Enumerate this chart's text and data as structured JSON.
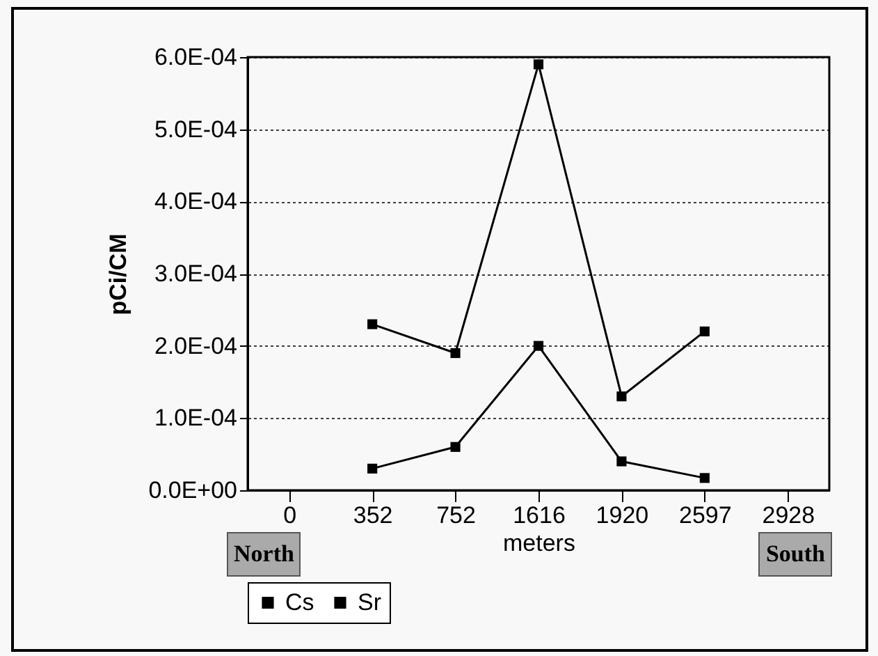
{
  "chart_data": {
    "type": "line",
    "xlabel": "meters",
    "ylabel": "pCi/CM",
    "categories": [
      "0",
      "352",
      "752",
      "1616",
      "1920",
      "2597",
      "2928"
    ],
    "series": [
      {
        "name": "Cs",
        "color": "#000000",
        "values": [
          null,
          0.00023,
          0.00019,
          0.00059,
          0.00013,
          0.00022,
          null
        ]
      },
      {
        "name": "Sr",
        "color": "#000000",
        "values": [
          null,
          3e-05,
          6e-05,
          0.0002,
          4e-05,
          1.7e-05,
          null
        ]
      }
    ],
    "ylim": [
      0,
      0.0006
    ],
    "yticks": [
      {
        "value": 0,
        "label": "0.0E+00"
      },
      {
        "value": 0.0001,
        "label": "1.0E-04"
      },
      {
        "value": 0.0002,
        "label": "2.0E-04"
      },
      {
        "value": 0.0003,
        "label": "3.0E-04"
      },
      {
        "value": 0.0004,
        "label": "4.0E-04"
      },
      {
        "value": 0.0005,
        "label": "5.0E-04"
      },
      {
        "value": 0.0006,
        "label": "6.0E-04"
      }
    ],
    "grid": "y",
    "legend": "bottom",
    "marker": "square",
    "line_style": "solid",
    "annotations": [
      "North",
      "South"
    ]
  }
}
